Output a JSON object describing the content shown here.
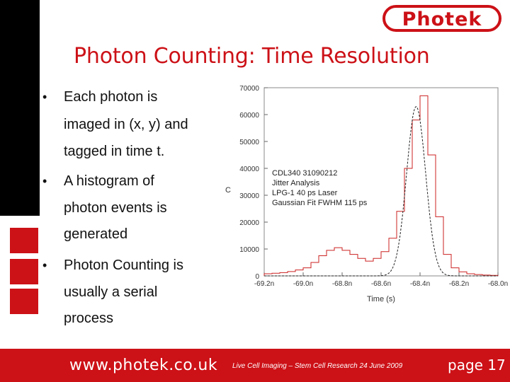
{
  "slide": {
    "logo_text": "Photek",
    "title": "Photon Counting: Time Resolution",
    "bullets": [
      {
        "lines": [
          "Each photon is",
          "imaged in (x, y) and",
          "tagged in time t."
        ]
      },
      {
        "lines": [
          "A histogram of",
          "photon events is",
          "generated"
        ]
      },
      {
        "lines": [
          "Photon Counting is",
          "usually a serial",
          "process"
        ]
      }
    ],
    "bullet_symbol": "•"
  },
  "footer": {
    "url": "www.photek.co.uk",
    "event": "Live Cell Imaging – Stem Cell Research 24 June 2009",
    "page": "page 17"
  },
  "colors": {
    "brand_red": "#cc1117",
    "histogram": "#cc2222",
    "fit": "#222222"
  },
  "chart_data": {
    "type": "line",
    "title": "",
    "xlabel": "Time (s)",
    "ylabel": "Counts",
    "ylabel_visible": "C",
    "xlim": [
      -69.2,
      -68.0
    ],
    "ylim": [
      0,
      70000
    ],
    "x_ticks": [
      {
        "value": -69.2,
        "label": "-69.2n"
      },
      {
        "value": -69.0,
        "label": "-69.0n"
      },
      {
        "value": -68.8,
        "label": "-68.8n"
      },
      {
        "value": -68.6,
        "label": "-68.6n"
      },
      {
        "value": -68.4,
        "label": "-68.4n"
      },
      {
        "value": -68.2,
        "label": "-68.2n"
      },
      {
        "value": -68.0,
        "label": "-68.0n"
      }
    ],
    "y_ticks": [
      {
        "value": 0,
        "label": "0"
      },
      {
        "value": 10000,
        "label": "10000"
      },
      {
        "value": 20000,
        "label": "20000"
      },
      {
        "value": 30000,
        "label": "30000"
      },
      {
        "value": 40000,
        "label": "40000"
      },
      {
        "value": 50000,
        "label": "50000"
      },
      {
        "value": 60000,
        "label": "60000"
      },
      {
        "value": 70000,
        "label": "70000"
      }
    ],
    "annotation": [
      "CDL340 31090212",
      "Jitter Analysis",
      "LPG-1 40 ps Laser",
      "Gaussian Fit FWHM 115 ps"
    ],
    "series": [
      {
        "kind": "histogram",
        "x": [
          -69.2,
          -69.16,
          -69.12,
          -69.08,
          -69.04,
          -69.0,
          -68.96,
          -68.92,
          -68.88,
          -68.84,
          -68.8,
          -68.76,
          -68.72,
          -68.68,
          -68.64,
          -68.6,
          -68.56,
          -68.52,
          -68.48,
          -68.44,
          -68.4,
          -68.36,
          -68.32,
          -68.28,
          -68.24,
          -68.2,
          -68.16,
          -68.12,
          -68.08,
          -68.04
        ],
        "values": [
          800,
          1000,
          1200,
          1600,
          2200,
          3000,
          5000,
          7500,
          9500,
          10500,
          9500,
          8000,
          6500,
          5500,
          6500,
          9000,
          14000,
          24000,
          40000,
          58000,
          67000,
          45000,
          22000,
          8000,
          3000,
          1500,
          800,
          500,
          300,
          200
        ]
      },
      {
        "kind": "gaussian-fit",
        "center": -68.42,
        "fwhm_ns": 0.115,
        "peak": 63000
      }
    ],
    "grid": false,
    "legend": "none"
  }
}
